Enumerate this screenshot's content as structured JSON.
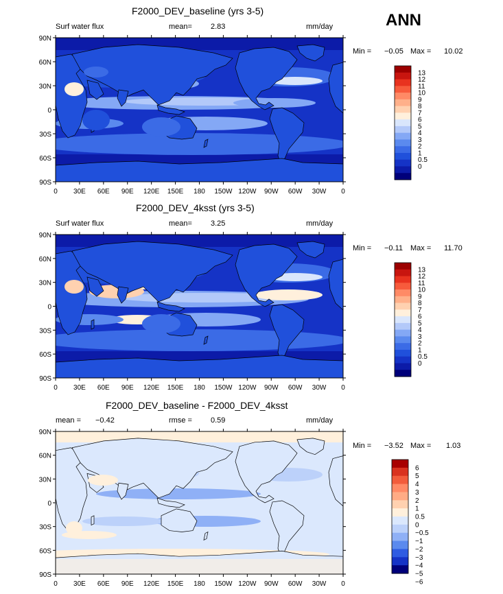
{
  "season": "ANN",
  "palette": {
    "main": [
      "#00007a",
      "#0c1ba8",
      "#1533c6",
      "#2050db",
      "#3b6be6",
      "#5b8aee",
      "#84a8f5",
      "#b3c9f9",
      "#d9e6fc",
      "#fff0dc",
      "#ffd1b0",
      "#ffb08a",
      "#ff8a66",
      "#f75b3c",
      "#e8321f",
      "#c8150f",
      "#9c0000"
    ],
    "diff": [
      "#00007a",
      "#1533c6",
      "#2f5ce2",
      "#5b8aee",
      "#8fb0f6",
      "#bcd1fa",
      "#dbe8fd",
      "#fff0dc",
      "#ffd1b0",
      "#ffab85",
      "#ff8a66",
      "#f25c3c",
      "#d9321f",
      "#a80000"
    ]
  },
  "maps": [
    {
      "title": "F2000_DEV_baseline (yrs 3-5)",
      "left_label": "Surf water flux",
      "mid_label": "mean=",
      "mid_value": "2.83",
      "units": "mm/day",
      "min_label": "Min =",
      "min_value": "−0.05",
      "max_label": "Max =",
      "max_value": "10.02",
      "colorbar_labels": [
        "13",
        "12",
        "11",
        "10",
        "9",
        "8",
        "7",
        "6",
        "5",
        "4",
        "3",
        "2",
        "1",
        "0.5",
        "0"
      ]
    },
    {
      "title": "F2000_DEV_4ksst (yrs 3-5)",
      "left_label": "Surf water flux",
      "mid_label": "mean=",
      "mid_value": "3.25",
      "units": "mm/day",
      "min_label": "Min =",
      "min_value": "−0.11",
      "max_label": "Max =",
      "max_value": "11.70",
      "colorbar_labels": [
        "13",
        "12",
        "11",
        "10",
        "9",
        "8",
        "7",
        "6",
        "5",
        "4",
        "3",
        "2",
        "1",
        "0.5",
        "0"
      ]
    },
    {
      "title": "F2000_DEV_baseline - F2000_DEV_4ksst",
      "left_label": "mean =",
      "left_value": "−0.42",
      "mid_label": "rmse =",
      "mid_value": "0.59",
      "units": "mm/day",
      "min_label": "Min =",
      "min_value": "−3.52",
      "max_label": "Max =",
      "max_value": "1.03",
      "colorbar_labels": [
        "6",
        "5",
        "4",
        "3",
        "2",
        "1",
        "0.5",
        "0",
        "−0.5",
        "−1",
        "−2",
        "−3",
        "−4",
        "−5",
        "−6"
      ]
    }
  ],
  "lat_ticks": [
    "90N",
    "60N",
    "30N",
    "0",
    "30S",
    "60S",
    "90S"
  ],
  "lon_ticks": [
    "0",
    "30E",
    "60E",
    "90E",
    "120E",
    "150E",
    "180",
    "150W",
    "120W",
    "90W",
    "60W",
    "30W",
    "0"
  ]
}
